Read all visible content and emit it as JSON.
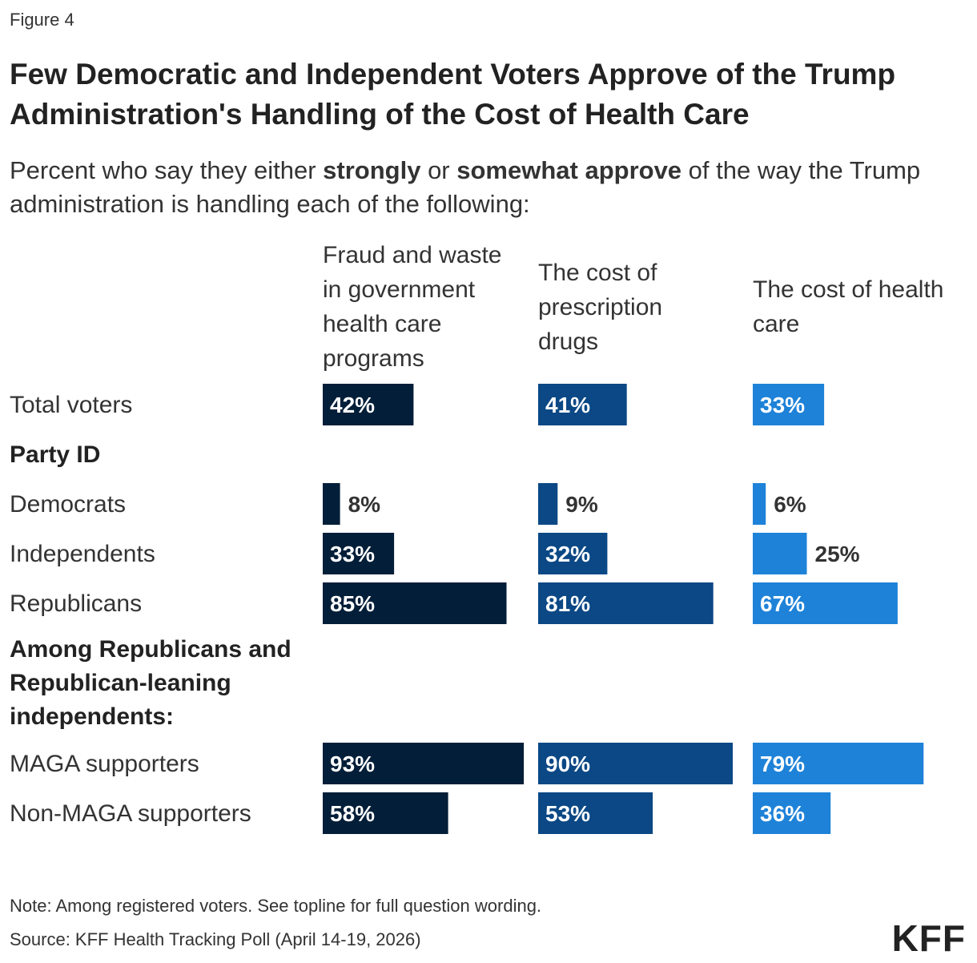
{
  "figure_label": "Figure 4",
  "title": "Few Democratic and Independent Voters Approve of the Trump Administration's Handling of the Cost of Health Care",
  "subtitle": {
    "part1": "Percent who say they either ",
    "bold1": "strongly",
    "part2": " or ",
    "bold2": "somewhat approve",
    "part3": " of the way the Trump administration is handling each of the following:"
  },
  "chart_data": {
    "type": "bar",
    "orientation": "horizontal",
    "unit": "%",
    "xlim": [
      0,
      100
    ],
    "grid": false,
    "categories": [
      "Total voters",
      "Democrats",
      "Independents",
      "Republicans",
      "MAGA supporters",
      "Non-MAGA supporters"
    ],
    "row_headings": [
      "Party ID",
      "Among Republicans and Republican-leaning independents:"
    ],
    "series": [
      {
        "name": "Fraud and waste in government health care programs",
        "color": "#021e38",
        "values": [
          42,
          8,
          33,
          85,
          93,
          58
        ]
      },
      {
        "name": "The cost of prescription drugs",
        "color": "#0b4885",
        "values": [
          41,
          9,
          32,
          81,
          90,
          53
        ]
      },
      {
        "name": "The cost of health care",
        "color": "#1e82d8",
        "values": [
          33,
          6,
          25,
          67,
          79,
          36
        ]
      }
    ]
  },
  "footer": {
    "note": "Note: Among registered voters. See topline for full question wording.",
    "source": "Source: KFF Health Tracking Poll (April 14-19, 2026)",
    "logo": "KFF"
  }
}
